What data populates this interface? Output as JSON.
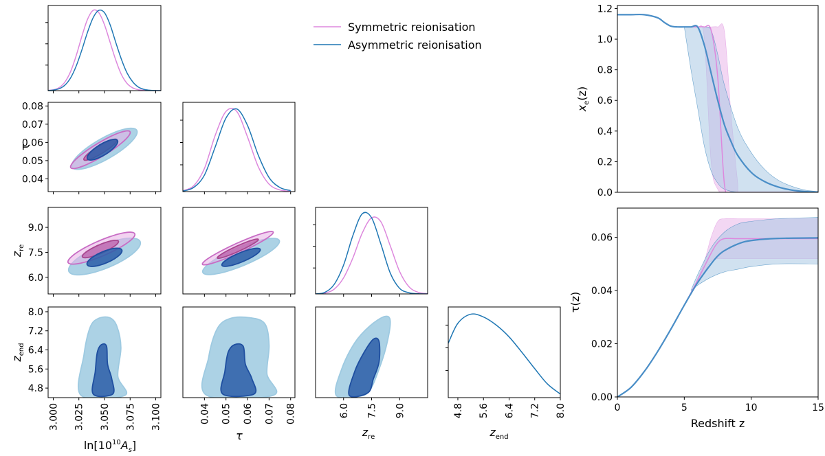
{
  "colors": {
    "symmetric": "#dd88dd",
    "symmetric_fill_outer": "#e8aee6",
    "symmetric_fill_inner": "#c05aa8",
    "asymmetric": "#1f77b4",
    "asym_fill_outer": "#9ecae1",
    "asym_fill_inner": "#2c5ea8",
    "band_sym": "#ecc2ec",
    "band_asym": "#a9c8e3"
  },
  "legend": {
    "symmetric": "Symmetric reionisation",
    "asymmetric": "Asymmetric reionisation"
  },
  "chart_data": [
    {
      "type": "line",
      "panel": "1D posterior ln[10^10 A_s]",
      "x": [
        3.0,
        3.005,
        3.01,
        3.015,
        3.02,
        3.025,
        3.03,
        3.035,
        3.04,
        3.045,
        3.05,
        3.055,
        3.06,
        3.065,
        3.07,
        3.075,
        3.08,
        3.085,
        3.09,
        3.095,
        3.1
      ],
      "series": [
        {
          "name": "Symmetric reionisation",
          "values": [
            0.003,
            0.012,
            0.04,
            0.11,
            0.24,
            0.44,
            0.68,
            0.89,
            1.0,
            0.97,
            0.82,
            0.6,
            0.38,
            0.2,
            0.09,
            0.035,
            0.012,
            0.004,
            0.001,
            0.0003,
            0.0
          ]
        },
        {
          "name": "Asymmetric reionisation",
          "values": [
            0.002,
            0.008,
            0.025,
            0.07,
            0.16,
            0.31,
            0.51,
            0.73,
            0.91,
            1.0,
            0.97,
            0.82,
            0.6,
            0.39,
            0.22,
            0.11,
            0.045,
            0.016,
            0.005,
            0.0015,
            0.0004
          ]
        }
      ],
      "xlim": [
        3.0,
        3.1
      ],
      "ylim": [
        0,
        1.06
      ]
    },
    {
      "type": "line",
      "panel": "1D posterior tau",
      "x": [
        0.03,
        0.035,
        0.04,
        0.045,
        0.05,
        0.055,
        0.06,
        0.065,
        0.07,
        0.075,
        0.08
      ],
      "series": [
        {
          "name": "Symmetric reionisation",
          "values": [
            0.01,
            0.07,
            0.28,
            0.68,
            0.97,
            0.97,
            0.66,
            0.3,
            0.09,
            0.02,
            0.004
          ]
        },
        {
          "name": "Asymmetric reionisation",
          "values": [
            0.006,
            0.05,
            0.2,
            0.54,
            0.89,
            1.0,
            0.8,
            0.44,
            0.17,
            0.05,
            0.012
          ]
        }
      ],
      "xlim": [
        0.03,
        0.082
      ],
      "ylim": [
        0,
        1.08
      ]
    },
    {
      "type": "line",
      "panel": "1D posterior z_re",
      "x": [
        4.5,
        5.0,
        5.5,
        6.0,
        6.5,
        7.0,
        7.5,
        8.0,
        8.5,
        9.0,
        9.5,
        10.0,
        10.5
      ],
      "series": [
        {
          "name": "Symmetric reionisation",
          "values": [
            0.0,
            0.01,
            0.06,
            0.2,
            0.45,
            0.76,
            0.95,
            0.9,
            0.6,
            0.28,
            0.09,
            0.02,
            0.004
          ]
        },
        {
          "name": "Asymmetric reionisation",
          "values": [
            0.0,
            0.02,
            0.12,
            0.36,
            0.73,
            1.0,
            0.95,
            0.62,
            0.26,
            0.07,
            0.015,
            0.002,
            0.0
          ]
        }
      ],
      "xlim": [
        4.5,
        10.5
      ],
      "ylim": [
        0,
        1.08
      ]
    },
    {
      "type": "line",
      "panel": "1D posterior z_end",
      "x": [
        4.5,
        4.8,
        5.2,
        5.6,
        6.0,
        6.4,
        6.8,
        7.2,
        7.6,
        8.0
      ],
      "series": [
        {
          "name": "Asymmetric reionisation",
          "values": [
            0.6,
            0.82,
            0.92,
            0.89,
            0.8,
            0.67,
            0.5,
            0.32,
            0.15,
            0.04
          ]
        }
      ],
      "xlim": [
        4.5,
        8.0
      ],
      "ylim": [
        0,
        1.0
      ]
    },
    {
      "type": "contour",
      "panel": "2D tau vs ln[10^10 A_s]",
      "xlim": [
        2.995,
        3.105
      ],
      "ylim": [
        0.033,
        0.082
      ],
      "ellipses": [
        {
          "name": "Symmetric 95%",
          "cx": 3.046,
          "cy": 0.056,
          "major": 0.036,
          "minor": 0.0043,
          "angle_deg": 36
        },
        {
          "name": "Asymmetric 95%",
          "cx": 3.05,
          "cy": 0.0565,
          "major": 0.038,
          "minor": 0.0065,
          "angle_deg": 33
        },
        {
          "name": "Symmetric 68%",
          "cx": 3.046,
          "cy": 0.056,
          "major": 0.02,
          "minor": 0.0025,
          "angle_deg": 36
        },
        {
          "name": "Asymmetric 68%",
          "cx": 3.048,
          "cy": 0.056,
          "major": 0.018,
          "minor": 0.0035,
          "angle_deg": 34
        }
      ]
    },
    {
      "type": "contour",
      "panel": "2D z_re vs ln[10^10 A_s]",
      "xlim": [
        2.995,
        3.105
      ],
      "ylim": [
        5.0,
        10.2
      ],
      "ellipses": [
        {
          "name": "Symmetric 95%",
          "cx": 3.047,
          "cy": 7.75,
          "major": 0.037,
          "minor": 0.5,
          "angle_deg": 28
        },
        {
          "name": "Asymmetric 95%",
          "cx": 3.05,
          "cy": 7.25,
          "major": 0.039,
          "minor": 0.75,
          "angle_deg": 26
        },
        {
          "name": "Symmetric 68%",
          "cx": 3.046,
          "cy": 7.7,
          "major": 0.02,
          "minor": 0.28,
          "angle_deg": 28
        },
        {
          "name": "Asymmetric 68%",
          "cx": 3.05,
          "cy": 7.2,
          "major": 0.019,
          "minor": 0.38,
          "angle_deg": 26
        }
      ]
    },
    {
      "type": "contour",
      "panel": "2D z_re vs tau",
      "xlim": [
        0.03,
        0.082
      ],
      "ylim": [
        5.0,
        10.2
      ],
      "ellipses": [
        {
          "name": "Symmetric 95%",
          "cx": 0.0555,
          "cy": 7.75,
          "major": 0.019,
          "minor": 0.32,
          "angle_deg": 30
        },
        {
          "name": "Asymmetric 95%",
          "cx": 0.057,
          "cy": 7.25,
          "major": 0.02,
          "minor": 0.6,
          "angle_deg": 27
        },
        {
          "name": "Symmetric 68%",
          "cx": 0.0555,
          "cy": 7.72,
          "major": 0.011,
          "minor": 0.18,
          "angle_deg": 30
        },
        {
          "name": "Asymmetric 68%",
          "cx": 0.057,
          "cy": 7.2,
          "major": 0.01,
          "minor": 0.3,
          "angle_deg": 27
        }
      ]
    },
    {
      "type": "contour",
      "panel": "2D z_end vs ln[10^10 A_s]",
      "xlim": [
        2.995,
        3.105
      ],
      "ylim": [
        4.4,
        8.2
      ],
      "regions": [
        {
          "name": "Asymmetric 95%",
          "points": [
            [
              3.027,
              4.5
            ],
            [
              3.03,
              6.2
            ],
            [
              3.036,
              7.35
            ],
            [
              3.044,
              7.72
            ],
            [
              3.055,
              7.75
            ],
            [
              3.062,
              7.4
            ],
            [
              3.066,
              6.5
            ],
            [
              3.063,
              5.3
            ],
            [
              3.07,
              4.5
            ]
          ]
        },
        {
          "name": "Asymmetric 68%",
          "points": [
            [
              3.039,
              4.55
            ],
            [
              3.041,
              5.5
            ],
            [
              3.043,
              6.3
            ],
            [
              3.047,
              6.62
            ],
            [
              3.052,
              6.55
            ],
            [
              3.053,
              5.8
            ],
            [
              3.057,
              5.2
            ],
            [
              3.058,
              4.55
            ]
          ]
        }
      ]
    },
    {
      "type": "contour",
      "panel": "2D z_end vs tau",
      "xlim": [
        0.03,
        0.082
      ],
      "ylim": [
        4.4,
        8.2
      ],
      "regions": [
        {
          "name": "Asymmetric 95%",
          "points": [
            [
              0.041,
              4.5
            ],
            [
              0.042,
              6.1
            ],
            [
              0.046,
              7.3
            ],
            [
              0.052,
              7.72
            ],
            [
              0.061,
              7.75
            ],
            [
              0.068,
              7.5
            ],
            [
              0.07,
              6.6
            ],
            [
              0.069,
              5.4
            ],
            [
              0.072,
              4.5
            ]
          ]
        },
        {
          "name": "Asymmetric 68%",
          "points": [
            [
              0.0485,
              4.55
            ],
            [
              0.0495,
              5.5
            ],
            [
              0.051,
              6.3
            ],
            [
              0.054,
              6.62
            ],
            [
              0.058,
              6.55
            ],
            [
              0.059,
              5.8
            ],
            [
              0.062,
              5.2
            ],
            [
              0.063,
              4.55
            ]
          ]
        }
      ]
    },
    {
      "type": "contour",
      "panel": "2D z_end vs z_re",
      "xlim": [
        4.5,
        10.5
      ],
      "ylim": [
        4.4,
        8.2
      ],
      "regions": [
        {
          "name": "Asymmetric 95%",
          "points": [
            [
              5.6,
              4.5
            ],
            [
              5.9,
              5.6
            ],
            [
              6.6,
              6.7
            ],
            [
              7.4,
              7.4
            ],
            [
              8.2,
              7.8
            ],
            [
              8.5,
              7.6
            ],
            [
              8.3,
              6.6
            ],
            [
              7.9,
              5.6
            ],
            [
              7.4,
              4.7
            ],
            [
              6.8,
              4.45
            ]
          ]
        },
        {
          "name": "Asymmetric 68%",
          "points": [
            [
              6.3,
              4.5
            ],
            [
              6.6,
              5.5
            ],
            [
              7.1,
              6.3
            ],
            [
              7.6,
              6.85
            ],
            [
              7.9,
              6.75
            ],
            [
              7.9,
              5.9
            ],
            [
              7.6,
              5.2
            ],
            [
              7.3,
              4.6
            ]
          ]
        }
      ]
    },
    {
      "type": "line",
      "panel": "Ionisation fraction x_e(z)",
      "x": [
        0,
        1,
        2,
        3,
        3.5,
        4,
        4.5,
        5,
        5.5,
        6,
        6.5,
        7,
        7.5,
        8,
        8.5,
        9,
        10,
        11,
        12,
        13,
        14,
        15
      ],
      "series": [
        {
          "name": "Symmetric reionisation",
          "values": [
            1.16,
            1.16,
            1.16,
            1.14,
            1.11,
            1.085,
            1.08,
            1.08,
            1.08,
            1.08,
            1.08,
            1.06,
            0.75,
            0.05,
            0.0,
            0.0,
            0.0,
            0.0,
            0.0,
            0.0,
            0.0,
            0.0
          ]
        },
        {
          "name": "Asymmetric reionisation",
          "values": [
            1.16,
            1.16,
            1.16,
            1.14,
            1.11,
            1.085,
            1.08,
            1.08,
            1.08,
            1.08,
            0.96,
            0.78,
            0.6,
            0.44,
            0.33,
            0.24,
            0.13,
            0.07,
            0.035,
            0.015,
            0.005,
            0.001
          ]
        }
      ],
      "bands": [
        {
          "name": "Symmetric reionisation",
          "x": [
            5.5,
            6,
            6.5,
            7,
            7.5,
            8,
            8.5,
            9
          ],
          "low": [
            1.08,
            1.08,
            1.0,
            0.2,
            0.02,
            0.0,
            0.0,
            0.0
          ],
          "high": [
            1.08,
            1.08,
            1.08,
            1.08,
            1.08,
            1.05,
            0.5,
            0.05
          ]
        },
        {
          "name": "Asymmetric reionisation",
          "x": [
            5,
            5.5,
            6,
            6.5,
            7,
            7.5,
            8,
            9,
            10,
            11,
            12,
            13,
            14,
            15
          ],
          "low": [
            1.08,
            0.8,
            0.55,
            0.3,
            0.14,
            0.06,
            0.02,
            0.0,
            0.0,
            0.0,
            0.0,
            0.0,
            0.0,
            0.0
          ],
          "high": [
            1.08,
            1.08,
            1.08,
            1.08,
            1.06,
            0.9,
            0.7,
            0.42,
            0.26,
            0.15,
            0.08,
            0.04,
            0.015,
            0.005
          ]
        }
      ],
      "xlabel": "",
      "ylabel": "x_e(z)",
      "xlim": [
        0,
        15
      ],
      "ylim": [
        0,
        1.22
      ],
      "yticks": [
        "0.0",
        "0.2",
        "0.4",
        "0.6",
        "0.8",
        "1.0",
        "1.2"
      ]
    },
    {
      "type": "line",
      "panel": "Optical depth tau(z)",
      "x": [
        0,
        1,
        2,
        3,
        4,
        5,
        6,
        7,
        7.5,
        8,
        9,
        10,
        12,
        15
      ],
      "series": [
        {
          "name": "Symmetric reionisation",
          "values": [
            0.0,
            0.0035,
            0.0095,
            0.017,
            0.0255,
            0.0345,
            0.044,
            0.054,
            0.058,
            0.0595,
            0.0595,
            0.0595,
            0.0595,
            0.0595
          ]
        },
        {
          "name": "Asymmetric reionisation",
          "values": [
            0.0,
            0.0035,
            0.0095,
            0.017,
            0.0255,
            0.0345,
            0.043,
            0.05,
            0.053,
            0.055,
            0.0575,
            0.0588,
            0.0596,
            0.0598
          ]
        }
      ],
      "bands": [
        {
          "name": "Symmetric reionisation",
          "x": [
            5.8,
            6.5,
            7,
            7.5,
            8,
            9,
            10,
            15
          ],
          "low": [
            0.042,
            0.047,
            0.051,
            0.052,
            0.052,
            0.052,
            0.052,
            0.052
          ],
          "high": [
            0.042,
            0.051,
            0.06,
            0.066,
            0.067,
            0.067,
            0.067,
            0.067
          ]
        },
        {
          "name": "Asymmetric reionisation",
          "x": [
            5.5,
            6,
            7,
            8,
            9,
            10,
            12,
            15
          ],
          "low": [
            0.04,
            0.042,
            0.045,
            0.047,
            0.048,
            0.049,
            0.05,
            0.05
          ],
          "high": [
            0.04,
            0.046,
            0.056,
            0.062,
            0.065,
            0.066,
            0.067,
            0.0675
          ]
        }
      ],
      "xlabel": "Redshift z",
      "ylabel": "τ(z)",
      "xlim": [
        0,
        15
      ],
      "ylim": [
        0,
        0.071
      ],
      "xticks": [
        "0",
        "5",
        "10",
        "15"
      ],
      "yticks": [
        "0.00",
        "0.02",
        "0.04",
        "0.06"
      ]
    }
  ],
  "axes": {
    "as_label": "ln[10",
    "as_sup": "10",
    "as_end": "A",
    "as_sub": "s",
    "as_close": "]",
    "tau_label": "τ",
    "zre_main": "z",
    "zre_sub": "re",
    "zend_main": "z",
    "zend_sub": "end",
    "xe_main": "x",
    "xe_sub": "e",
    "xe_tail": "(z)",
    "redshift_label": "Redshift z",
    "tauz_label": "τ(z)",
    "as_ticks": [
      "3.000",
      "3.025",
      "3.050",
      "3.075",
      "3.100"
    ],
    "tau_ticks_x": [
      "0.04",
      "0.05",
      "0.06",
      "0.07",
      "0.08"
    ],
    "tau_ticks_y": [
      "0.08",
      "0.07",
      "0.06",
      "0.05",
      "0.04"
    ],
    "zre_ticks_x": [
      "6.0",
      "7.5",
      "9.0"
    ],
    "zre_ticks_y": [
      "9.0",
      "7.5",
      "6.0"
    ],
    "zend_ticks_y": [
      "8.0",
      "7.2",
      "6.4",
      "5.6",
      "4.8"
    ],
    "zend_ticks_x": [
      "4.8",
      "5.6",
      "6.4",
      "7.2",
      "8.0"
    ],
    "xe_ticks": [
      "1.2",
      "1.0",
      "0.8",
      "0.6",
      "0.4",
      "0.2",
      "0.0"
    ],
    "tauz_ticks": [
      "0.06",
      "0.04",
      "0.02",
      "0.00"
    ],
    "redshift_ticks": [
      "0",
      "5",
      "10",
      "15"
    ]
  }
}
